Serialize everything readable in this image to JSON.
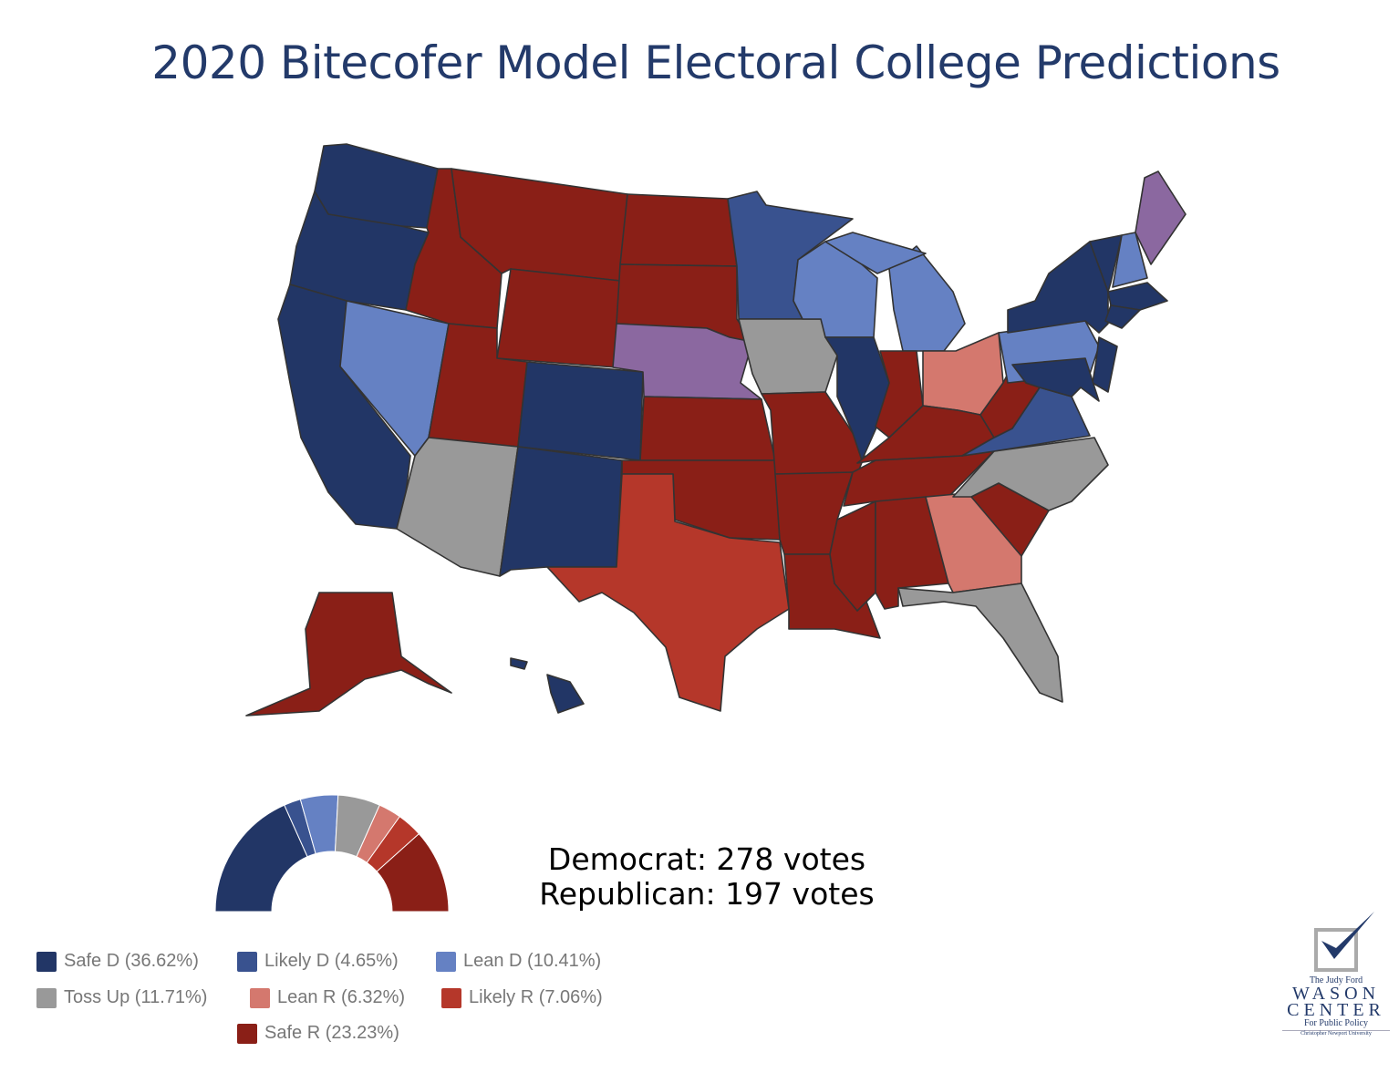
{
  "title": "2020 Bitecofer Model Electoral College Predictions",
  "colors": {
    "safe_d": "#223666",
    "likely_d": "#39528f",
    "lean_d": "#6581c3",
    "toss_up": "#999999",
    "lean_r": "#d4786e",
    "likely_r": "#b5372a",
    "safe_r": "#8a1f17",
    "split": "#8b68a0"
  },
  "states": {
    "safe_d": [
      "WA",
      "OR",
      "CA",
      "CO",
      "NM",
      "IL",
      "NY",
      "VT",
      "MA",
      "CT",
      "NJ",
      "MD",
      "HI"
    ],
    "likely_d": [
      "MN",
      "VA"
    ],
    "lean_d": [
      "NV",
      "WI",
      "MI",
      "PA",
      "NH"
    ],
    "toss_up": [
      "AZ",
      "IA",
      "NC",
      "FL"
    ],
    "lean_r": [
      "OH",
      "GA"
    ],
    "likely_r": [
      "TX"
    ],
    "safe_r": [
      "MT",
      "ID",
      "WY",
      "UT",
      "ND",
      "SD",
      "KS",
      "OK",
      "MO",
      "AR",
      "LA",
      "MS",
      "AL",
      "TN",
      "KY",
      "IN",
      "WV",
      "SC",
      "AK"
    ],
    "split": [
      "ME",
      "NE"
    ]
  },
  "totals": {
    "democrat": "Democrat: 278 votes",
    "republican": "Republican: 197 votes"
  },
  "chart_data": {
    "type": "pie",
    "style": "half-donut",
    "categories": [
      "Safe D",
      "Likely D",
      "Lean D",
      "Toss Up",
      "Lean R",
      "Likely R",
      "Safe R"
    ],
    "values": [
      36.62,
      4.65,
      10.41,
      11.71,
      6.32,
      7.06,
      23.23
    ],
    "legend_labels": [
      "Safe D (36.62%)",
      "Likely D (4.65%)",
      "Lean D (10.41%)",
      "Toss Up (11.71%)",
      "Lean R (6.32%)",
      "Likely R (7.06%)",
      "Safe R (23.23%)"
    ],
    "legend_placement": "bottom-left"
  },
  "logo": {
    "line1": "The Judy Ford",
    "line2": "WASON",
    "line3": "CENTER",
    "line4": "For Public Policy",
    "line5": "Christopher Newport University"
  }
}
